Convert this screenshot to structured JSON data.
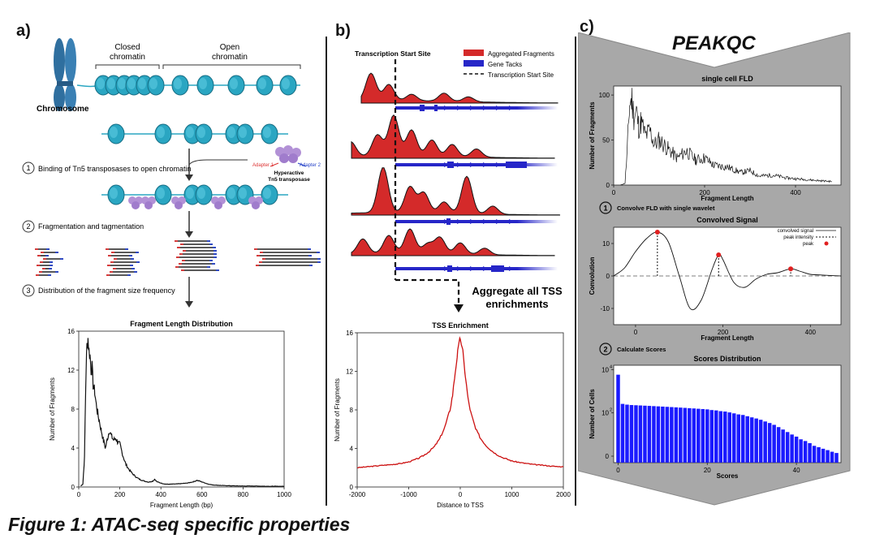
{
  "panels": {
    "a": "a)",
    "b": "b)",
    "c": "c)"
  },
  "panel_a": {
    "closed_label": "Closed\nchromatin",
    "open_label": "Open\nchromatin",
    "chromosome_label": "Chromosome",
    "step1": "Binding of Tn5 transposases to open chromatin",
    "step2": "Fragmentation and tagmentation",
    "step3": "Distribution of the fragment size frequency",
    "adapter1": "Adapter 1",
    "adapter2": "Adapter 2",
    "transposase_label": "Hyperactive\nTn5 transposase",
    "step_numbers": [
      "1",
      "2",
      "3"
    ]
  },
  "panel_b": {
    "tss_label": "Transcription Start Site",
    "legend": [
      "Aggregated Fragments",
      "Gene Tacks",
      "Transcription Start Site"
    ],
    "aggregate_text": "Aggregate all TSS\nenrichments"
  },
  "panel_c": {
    "title": "PEAKQC",
    "step1": "Convolve FLD with single wavelet",
    "step2": "Calculate Scores",
    "step_numbers": [
      "1",
      "2"
    ],
    "conv_legend": [
      "convolved signal",
      "peak intensity",
      "peak"
    ]
  },
  "caption": "Figure 1: ATAC-seq specific properties",
  "colors": {
    "fragment_red": "#d42a2a",
    "gene_blue": "#2626c8",
    "nucleosome_teal": "#2aa6c2",
    "transposase_purple": "#b291d6",
    "bar_blue": "#1a1aff",
    "gray_bg": "#a8a8a8"
  },
  "chart_data": [
    {
      "id": "fld",
      "type": "line",
      "title": "Fragment Length Distribution",
      "xlabel": "Fragment Length (bp)",
      "ylabel": "Number of Fragments",
      "xlim": [
        0,
        1000
      ],
      "ylim": [
        0,
        16
      ],
      "xticks": [
        0,
        200,
        400,
        600,
        800,
        1000
      ],
      "yticks": [
        0,
        4,
        8,
        12,
        16
      ],
      "x": [
        10,
        20,
        28,
        35,
        40,
        45,
        50,
        55,
        60,
        65,
        70,
        78,
        85,
        92,
        100,
        110,
        120,
        130,
        140,
        150,
        160,
        170,
        180,
        190,
        200,
        210,
        220,
        230,
        245,
        260,
        280,
        300,
        320,
        340,
        360,
        370,
        380,
        400,
        420,
        440,
        460,
        480,
        500,
        520,
        540,
        560,
        575,
        590,
        610,
        630,
        650,
        700,
        750,
        800,
        850,
        900,
        950,
        1000
      ],
      "y": [
        0.1,
        0.3,
        3.0,
        11.5,
        14.5,
        15.3,
        14.0,
        13.5,
        12.0,
        12.3,
        10.5,
        9.8,
        8.5,
        7.6,
        6.8,
        5.8,
        4.8,
        4.0,
        5.0,
        5.8,
        5.2,
        4.8,
        5.0,
        4.6,
        4.4,
        3.6,
        2.9,
        2.3,
        1.8,
        1.4,
        1.0,
        0.75,
        0.6,
        0.5,
        0.6,
        0.8,
        0.55,
        0.4,
        0.3,
        0.28,
        0.3,
        0.32,
        0.35,
        0.38,
        0.45,
        0.55,
        0.68,
        0.6,
        0.45,
        0.3,
        0.22,
        0.15,
        0.12,
        0.1,
        0.1,
        0.08,
        0.07,
        0.07
      ]
    },
    {
      "id": "tss",
      "type": "line",
      "title": "TSS Enrichment",
      "xlabel": "Distance to TSS",
      "ylabel": "Number of Fragments",
      "xlim": [
        -2000,
        2000
      ],
      "ylim": [
        0,
        16
      ],
      "xticks": [
        -2000,
        -1000,
        0,
        1000,
        2000
      ],
      "yticks": [
        0,
        4,
        8,
        12,
        16
      ],
      "x": [
        -2000,
        -1800,
        -1600,
        -1400,
        -1200,
        -1000,
        -900,
        -800,
        -700,
        -600,
        -500,
        -400,
        -300,
        -200,
        -150,
        -100,
        -50,
        0,
        50,
        100,
        150,
        200,
        300,
        400,
        500,
        600,
        700,
        800,
        900,
        1000,
        1200,
        1400,
        1600,
        1800,
        2000
      ],
      "y": [
        2.0,
        2.1,
        2.2,
        2.3,
        2.4,
        2.6,
        2.8,
        3.0,
        3.3,
        3.7,
        4.2,
        5.0,
        6.2,
        8.0,
        9.5,
        11.8,
        14.0,
        15.5,
        14.0,
        11.5,
        9.2,
        7.8,
        6.0,
        5.0,
        4.3,
        3.8,
        3.4,
        3.1,
        2.9,
        2.7,
        2.5,
        2.35,
        2.25,
        2.15,
        2.1
      ]
    },
    {
      "id": "sc_fld",
      "type": "line",
      "title": "single cell FLD",
      "xlabel": "Fragment Length",
      "ylabel": "Number of Fragments",
      "xlim": [
        0,
        500
      ],
      "ylim": [
        0,
        110
      ],
      "xticks": [
        0,
        200,
        400
      ],
      "yticks": [
        0,
        50,
        100
      ],
      "x": [
        15,
        25,
        30,
        35,
        40,
        45,
        50,
        55,
        60,
        70,
        80,
        90,
        100,
        120,
        140,
        160,
        180,
        200,
        220,
        250,
        280,
        300,
        320,
        350,
        380,
        400,
        450,
        480
      ],
      "y": [
        0,
        2,
        40,
        90,
        95,
        75,
        82,
        65,
        70,
        55,
        60,
        45,
        50,
        40,
        30,
        38,
        28,
        30,
        22,
        20,
        14,
        16,
        10,
        11,
        8,
        7,
        5,
        4
      ]
    },
    {
      "id": "convolved",
      "type": "line",
      "title": "Convolved Signal",
      "xlabel": "Fragment Length",
      "ylabel": "Convolution",
      "xlim": [
        -50,
        470
      ],
      "ylim": [
        -15,
        15
      ],
      "xticks": [
        0,
        200,
        400
      ],
      "yticks": [
        -10,
        0,
        10
      ],
      "x": [
        -50,
        -25,
        0,
        25,
        50,
        75,
        100,
        125,
        150,
        175,
        190,
        200,
        225,
        250,
        275,
        300,
        325,
        355,
        375,
        400,
        425,
        450,
        470
      ],
      "y": [
        0,
        2.5,
        7.5,
        11.5,
        13.5,
        10.5,
        0,
        -10,
        -7.5,
        2,
        6.5,
        5,
        -2,
        -3.5,
        -1,
        0.5,
        1,
        2.2,
        1.5,
        0.5,
        0.3,
        0.1,
        0
      ],
      "peaks_x": [
        50,
        190,
        355
      ],
      "peaks_y": [
        13.5,
        6.5,
        2.2
      ]
    },
    {
      "id": "scores",
      "type": "bar",
      "title": "Scores  Distribution",
      "xlabel": "Scores",
      "ylabel": "Number of Cells",
      "xticks": [
        0,
        20,
        40
      ],
      "yticks": [
        "0",
        "10^2",
        "10^4"
      ],
      "bins": [
        0,
        1,
        2,
        3,
        4,
        5,
        6,
        7,
        8,
        9,
        10,
        11,
        12,
        13,
        14,
        15,
        16,
        17,
        18,
        19,
        20,
        21,
        22,
        23,
        24,
        25,
        26,
        27,
        28,
        29,
        30,
        31,
        32,
        33,
        34,
        35,
        36,
        37,
        38,
        39,
        40,
        41,
        42,
        43,
        44,
        45,
        46,
        47,
        48,
        49
      ],
      "values": [
        5800,
        260,
        240,
        230,
        225,
        220,
        215,
        210,
        205,
        200,
        195,
        190,
        185,
        180,
        175,
        170,
        165,
        160,
        155,
        150,
        145,
        135,
        130,
        120,
        115,
        105,
        95,
        85,
        80,
        70,
        62,
        55,
        48,
        40,
        34,
        28,
        22,
        17,
        13,
        10,
        8,
        6,
        5,
        4,
        3,
        2.6,
        2.2,
        1.9,
        1.6,
        1.4
      ]
    }
  ]
}
